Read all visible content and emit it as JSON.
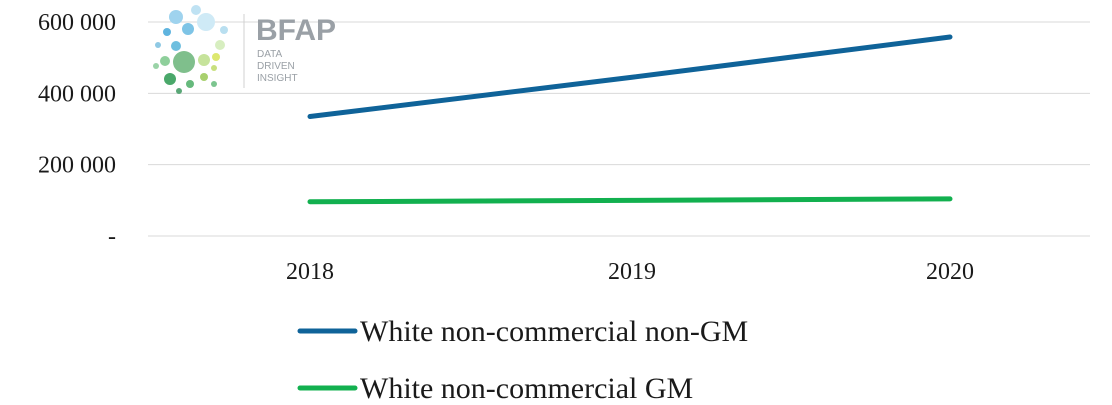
{
  "chart_data": {
    "type": "line",
    "categories": [
      "2018",
      "2019",
      "2020"
    ],
    "series": [
      {
        "name": "White non-commercial non-GM",
        "values": [
          335000,
          445000,
          558000
        ],
        "color": "#0f6399"
      },
      {
        "name": "White non-commercial GM",
        "values": [
          96000,
          100000,
          104000
        ],
        "color": "#12b04f"
      }
    ],
    "y_ticks": [
      {
        "value": 0,
        "label": "-"
      },
      {
        "value": 200000,
        "label": "200 000"
      },
      {
        "value": 400000,
        "label": "400 000"
      },
      {
        "value": 600000,
        "label": "600 000"
      }
    ],
    "ylim": [
      0,
      600000
    ],
    "grid": true,
    "legend_placement": "bottom",
    "title": "",
    "xlabel": "",
    "ylabel": ""
  },
  "logo": {
    "name": "BFAP",
    "tagline": [
      "DATA",
      "DRIVEN",
      "INSIGHT"
    ]
  }
}
